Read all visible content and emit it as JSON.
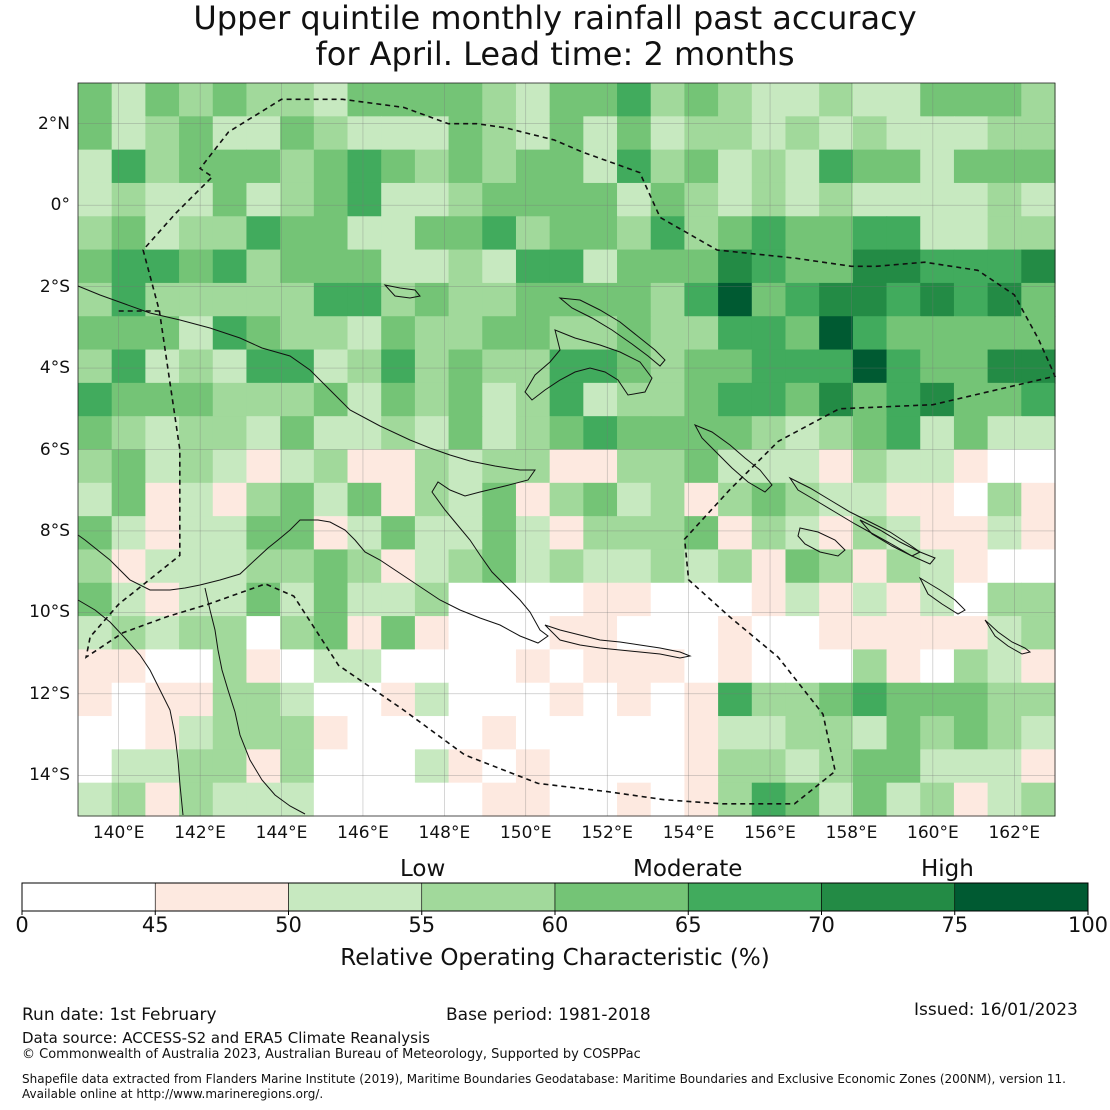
{
  "title": {
    "line1": "Upper quintile monthly rainfall past accuracy",
    "line2": "for April. Lead time: 2 months"
  },
  "map": {
    "lat_labels": [
      "2°N",
      "0°",
      "2°S",
      "4°S",
      "6°S",
      "8°S",
      "10°S",
      "12°S",
      "14°S"
    ],
    "lon_labels": [
      "140°E",
      "142°E",
      "144°E",
      "146°E",
      "148°E",
      "150°E",
      "152°E",
      "154°E",
      "156°E",
      "158°E",
      "160°E",
      "162°E"
    ],
    "lat_values": [
      2,
      0,
      -2,
      -4,
      -6,
      -8,
      -10,
      -12,
      -14
    ],
    "lon_values": [
      140,
      142,
      144,
      146,
      148,
      150,
      152,
      154,
      156,
      158,
      160,
      162
    ],
    "extent": {
      "lon_min": 139,
      "lon_max": 163,
      "lat_min": -15,
      "lat_max": 3
    },
    "grid_step_deg": 0.83,
    "boundary": [
      [
        140.0,
        -2.6
      ],
      [
        141.0,
        -2.6
      ],
      [
        140.6,
        -1.1
      ],
      [
        141.4,
        -0.2
      ],
      [
        142.3,
        0.7
      ],
      [
        142.0,
        0.9
      ],
      [
        142.7,
        1.8
      ],
      [
        144.0,
        2.6
      ],
      [
        145.5,
        2.6
      ],
      [
        147.0,
        2.4
      ],
      [
        148.1,
        2.0
      ],
      [
        148.8,
        2.0
      ],
      [
        149.5,
        1.9
      ],
      [
        150.7,
        1.6
      ],
      [
        151.4,
        1.3
      ],
      [
        152.8,
        0.8
      ],
      [
        153.3,
        -0.3
      ],
      [
        154.7,
        -1.1
      ],
      [
        156.6,
        -1.3
      ],
      [
        158.0,
        -1.5
      ],
      [
        158.6,
        -1.5
      ],
      [
        159.8,
        -1.4
      ],
      [
        161.1,
        -1.6
      ],
      [
        162.0,
        -2.2
      ],
      [
        162.6,
        -3.3
      ],
      [
        163.0,
        -4.2
      ],
      [
        160.0,
        -4.9
      ],
      [
        157.7,
        -5.0
      ],
      [
        156.2,
        -5.8
      ],
      [
        155.0,
        -7.0
      ],
      [
        153.9,
        -8.2
      ],
      [
        154.0,
        -9.2
      ],
      [
        155.0,
        -10.1
      ],
      [
        156.2,
        -11.1
      ],
      [
        157.3,
        -12.5
      ],
      [
        157.6,
        -13.9
      ],
      [
        156.6,
        -14.7
      ],
      [
        154.8,
        -14.7
      ],
      [
        153.4,
        -14.6
      ],
      [
        152.0,
        -14.4
      ],
      [
        150.3,
        -14.2
      ],
      [
        148.5,
        -13.5
      ],
      [
        147.0,
        -12.4
      ],
      [
        145.4,
        -11.3
      ],
      [
        144.3,
        -9.6
      ],
      [
        143.6,
        -9.3
      ],
      [
        142.2,
        -9.8
      ],
      [
        141.2,
        -10.1
      ],
      [
        140.1,
        -10.5
      ],
      [
        139.2,
        -11.1
      ],
      [
        139.3,
        -10.6
      ],
      [
        140.0,
        -9.8
      ],
      [
        141.5,
        -8.6
      ],
      [
        141.5,
        -6.0
      ],
      [
        141.0,
        -2.6
      ]
    ]
  },
  "legend": {
    "category_low": "Low",
    "category_moderate": "Moderate",
    "category_high": "High",
    "title": "Relative Operating Characteristic (%)",
    "ticks": [
      "0",
      "45",
      "50",
      "55",
      "60",
      "65",
      "70",
      "75",
      "100"
    ],
    "bins": [
      {
        "from": 0,
        "to": 45,
        "color": "#ffffff"
      },
      {
        "from": 45,
        "to": 50,
        "color": "#fde9e0"
      },
      {
        "from": 50,
        "to": 55,
        "color": "#c7e9c0"
      },
      {
        "from": 55,
        "to": 60,
        "color": "#a1d99b"
      },
      {
        "from": 60,
        "to": 65,
        "color": "#74c476"
      },
      {
        "from": 65,
        "to": 70,
        "color": "#41ab5d"
      },
      {
        "from": 70,
        "to": 75,
        "color": "#238b45"
      },
      {
        "from": 75,
        "to": 100,
        "color": "#005a32"
      }
    ]
  },
  "footer": {
    "run_date": "Run date: 1st February",
    "base_period": "Base period: 1981-2018",
    "issued": "Issued: 16/01/2023",
    "data_source": "Data source: ACCESS-S2 and ERA5 Climate Reanalysis",
    "copyright": "© Commonwealth of Australia 2023, Australian Bureau of Meteorology, Supported by COSPPac",
    "shapefile_line1": "Shapefile data extracted from Flanders Marine Institute (2019), Maritime Boundaries Geodatabase: Maritime Boundaries and Exclusive Economic Zones (200NM), version 11.",
    "shapefile_line2": "Available online at http://www.marineregions.org/."
  }
}
